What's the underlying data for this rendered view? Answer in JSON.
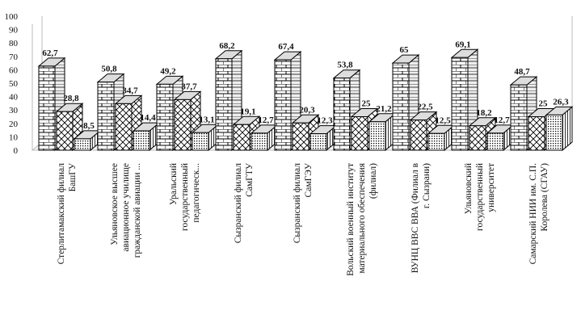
{
  "chart_data": {
    "type": "bar",
    "style": "3d-clustered-column",
    "title": "",
    "xlabel": "",
    "ylabel": "",
    "ylim": [
      0,
      100
    ],
    "yticks": [
      0,
      10,
      20,
      30,
      40,
      50,
      60,
      70,
      80,
      90,
      100
    ],
    "grid": false,
    "legend": "none",
    "categories": [
      [
        "Стерлитамакский филиал",
        "БашГУ"
      ],
      [
        "Ульяновское высшее",
        "авиационное училище",
        "гражданской авиации ..."
      ],
      [
        "Уральский",
        "государственный",
        "педагогическ..."
      ],
      [
        "Сызранский филиал",
        "СамГТУ"
      ],
      [
        "Сызранский филиал",
        "СамГЭУ"
      ],
      [
        "Вольский военный институт",
        "материального обеспечения",
        "(филиал)"
      ],
      [
        "ВУНЦ ВВС ВВА (Филиал в",
        "г. Сызрани)"
      ],
      [
        "Ульяновский",
        "государственный",
        "университет"
      ],
      [
        "Самарский НИИ им. С.П.",
        "Королева (СГАУ)"
      ]
    ],
    "series": [
      {
        "name": "series-1",
        "pattern": "brick",
        "values": [
          62.7,
          50.8,
          49.2,
          68.2,
          67.4,
          53.8,
          65,
          69.1,
          48.7
        ]
      },
      {
        "name": "series-2",
        "pattern": "crosshatch",
        "values": [
          28.8,
          34.7,
          37.7,
          19.1,
          20.3,
          25,
          22.5,
          18.2,
          25
        ]
      },
      {
        "name": "series-3",
        "pattern": "dots",
        "values": [
          8.5,
          14.4,
          13.1,
          12.7,
          12.3,
          21.2,
          12.5,
          12.7,
          26.3
        ]
      }
    ],
    "value_labels": [
      [
        "62,7",
        "28,8",
        "8,5"
      ],
      [
        "50,8",
        "34,7",
        "14,4"
      ],
      [
        "49,2",
        "37,7",
        "13,1"
      ],
      [
        "68,2",
        "19,1",
        "12,7"
      ],
      [
        "67,4",
        "20,3",
        "12,3"
      ],
      [
        "53,8",
        "25",
        "21,2"
      ],
      [
        "65",
        "22,5",
        "12,5"
      ],
      [
        "69,1",
        "18,2",
        "12,7"
      ],
      [
        "48,7",
        "25",
        "26,3"
      ]
    ]
  }
}
